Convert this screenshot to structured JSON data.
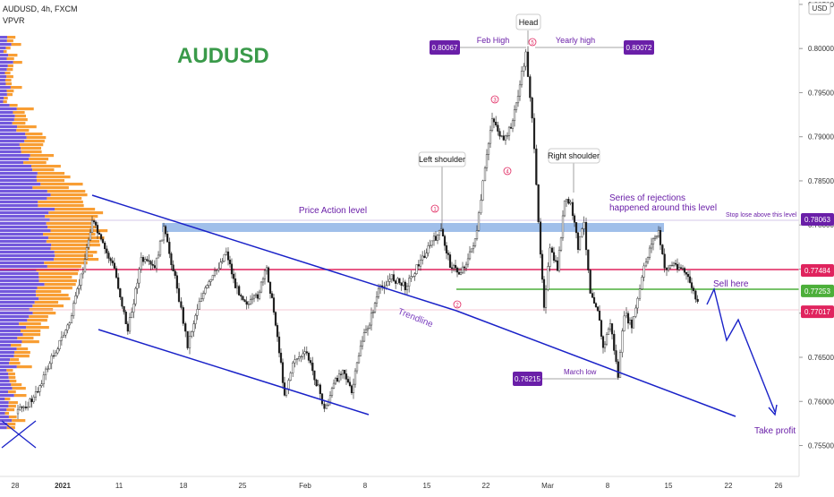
{
  "header": {
    "symbol": "AUDUSD, 4h, FXCM",
    "indicator": "VPVR",
    "currency_badge": "USD"
  },
  "chart_title": "AUDUSD",
  "colors": {
    "title_green": "#3a9a4a",
    "trend_blue": "#1a22c8",
    "zone_blue": "#8fb4e6",
    "resistance_red": "#e0245e",
    "support_green": "#4caf3a",
    "purple_label": "#6a1fa8",
    "annotation_purple": "#7b3fbf",
    "vp_blue": "#5a3bd6",
    "vp_orange": "#f7931e",
    "candle": "#1a1a1a"
  },
  "chart_data": {
    "type": "candlestick",
    "title": "AUDUSD",
    "ylim": [
      0.7515,
      0.8055
    ],
    "y_ticks": [
      "0.80500",
      "0.80000",
      "0.79500",
      "0.79000",
      "0.78500",
      "0.78000",
      "0.77500",
      "0.77000",
      "0.76500",
      "0.76000",
      "0.75500"
    ],
    "x_ticks": [
      "28",
      "2021",
      "11",
      "18",
      "25",
      "Feb",
      "8",
      "15",
      "22",
      "Mar",
      "8",
      "15",
      "22",
      "26"
    ],
    "price_labels": [
      {
        "text": "0.78063",
        "value": 0.78063,
        "color": "#6a1fa8"
      },
      {
        "text": "0.77484",
        "value": 0.77484,
        "color": "#e0245e"
      },
      {
        "text": "0.77253",
        "value": 0.77253,
        "color": "#4caf3a"
      },
      {
        "text": "0.77017",
        "value": 0.77017,
        "color": "#e0245e"
      }
    ],
    "annotations": {
      "head": "Head",
      "feb_high_label": "Feb High",
      "feb_high_value": "0.80067",
      "yearly_high_label": "Yearly high",
      "yearly_high_value": "0.80072",
      "left_shoulder": "Left shoulder",
      "right_shoulder": "Right shoulder",
      "price_action_level": "Price Action level",
      "rejections_line1": "Series of rejections",
      "rejections_line2": "happened around this level",
      "stop_loss": "Stop lose above this level",
      "sell_here": "Sell here",
      "take_profit": "Take profit",
      "trendline": "Trendline",
      "march_low_label": "March low",
      "march_low_value": "0.76215",
      "wave_numbers": [
        "1",
        "2",
        "3",
        "4",
        "5"
      ]
    }
  }
}
